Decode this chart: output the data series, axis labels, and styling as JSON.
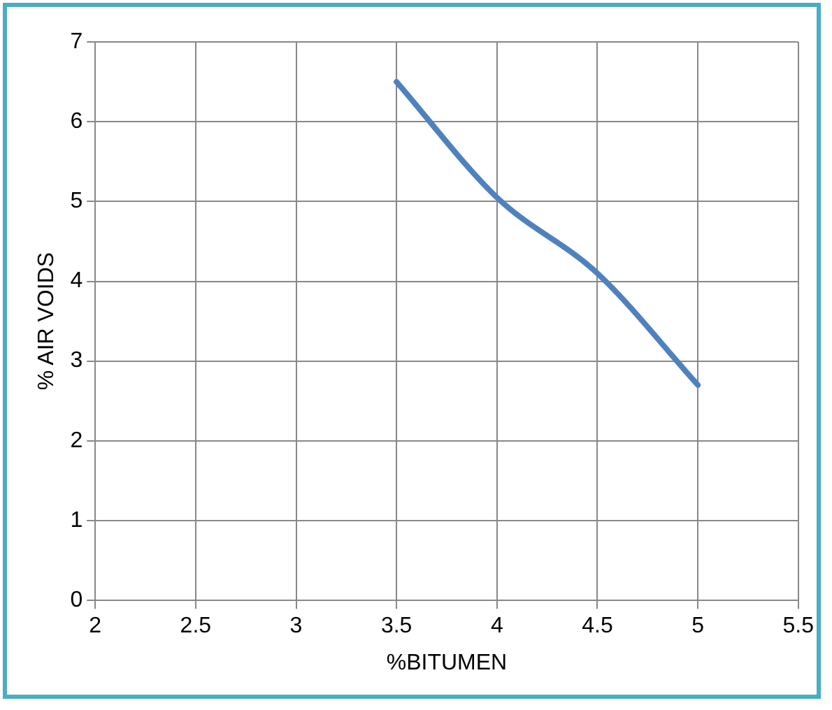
{
  "chart_data": {
    "type": "line",
    "xlabel": "%BITUMEN",
    "ylabel": "% AIR VOIDS",
    "x": [
      3.5,
      4,
      4.5,
      5
    ],
    "series": [
      {
        "color": "#4f81bd",
        "values": [
          6.5,
          5.05,
          4.1,
          2.7
        ]
      }
    ],
    "xlim": [
      2,
      5.5
    ],
    "xticks": [
      2,
      2.5,
      3,
      3.5,
      4,
      4.5,
      5,
      5.5
    ],
    "ylim": [
      0,
      7
    ],
    "yticks": [
      0,
      1,
      2,
      3,
      4,
      5,
      6,
      7
    ],
    "grid": true,
    "legend": false,
    "marker": "none",
    "line_style": "solid"
  }
}
